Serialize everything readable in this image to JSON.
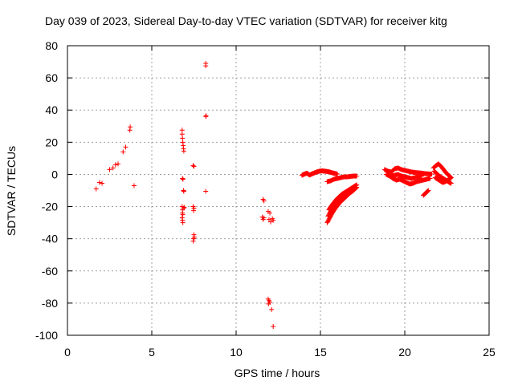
{
  "chart_data": {
    "type": "scatter",
    "title": "Day 039 of 2023, Sidereal Day-to-day VTEC variation (SDTVAR) for receiver kitg",
    "xlabel": "GPS time / hours",
    "ylabel": "SDTVAR / TECUs",
    "xlim": [
      0,
      25
    ],
    "ylim": [
      -100,
      80
    ],
    "xticks": [
      0,
      5,
      10,
      15,
      20,
      25
    ],
    "yticks": [
      -100,
      -80,
      -60,
      -40,
      -20,
      0,
      20,
      40,
      60,
      80
    ],
    "grid": true,
    "marker": "+",
    "color": "#ff0000",
    "series": [
      {
        "name": "kitg",
        "points": [
          [
            1.7,
            -9
          ],
          [
            1.9,
            -5
          ],
          [
            2.05,
            -5.5
          ],
          [
            2.5,
            3
          ],
          [
            2.7,
            4
          ],
          [
            2.85,
            6
          ],
          [
            3.0,
            6.5
          ],
          [
            3.3,
            14
          ],
          [
            3.45,
            17
          ],
          [
            3.7,
            27.5
          ],
          [
            3.72,
            29.5
          ],
          [
            3.95,
            -7
          ],
          [
            6.8,
            27.5
          ],
          [
            6.8,
            25
          ],
          [
            6.82,
            22.5
          ],
          [
            6.84,
            20
          ],
          [
            6.86,
            18
          ],
          [
            6.88,
            16
          ],
          [
            6.9,
            14.5
          ],
          [
            6.82,
            -2.5
          ],
          [
            6.85,
            -3
          ],
          [
            6.88,
            -10
          ],
          [
            6.9,
            -10.5
          ],
          [
            6.8,
            -20
          ],
          [
            6.82,
            -22
          ],
          [
            6.82,
            -24
          ],
          [
            6.84,
            -25
          ],
          [
            6.8,
            -27
          ],
          [
            6.82,
            -28.5
          ],
          [
            6.84,
            -30
          ],
          [
            6.9,
            -21
          ],
          [
            6.92,
            -20.5
          ],
          [
            7.45,
            5.5
          ],
          [
            7.5,
            5
          ],
          [
            7.45,
            -20
          ],
          [
            7.5,
            -21
          ],
          [
            7.48,
            -22.5
          ],
          [
            7.5,
            -37.5
          ],
          [
            7.48,
            -40
          ],
          [
            7.46,
            -41.5
          ],
          [
            7.52,
            -39
          ],
          [
            8.2,
            69
          ],
          [
            8.2,
            67.5
          ],
          [
            8.2,
            36
          ],
          [
            8.22,
            36.5
          ],
          [
            8.2,
            -10.5
          ],
          [
            11.6,
            -15.5
          ],
          [
            11.65,
            -16.5
          ],
          [
            11.55,
            -26.5
          ],
          [
            11.6,
            -28
          ],
          [
            11.65,
            -27
          ],
          [
            11.9,
            -23
          ],
          [
            12.0,
            -24
          ],
          [
            11.95,
            -28
          ],
          [
            12.05,
            -29.5
          ],
          [
            12.15,
            -27.5
          ],
          [
            12.2,
            -28.5
          ],
          [
            11.9,
            -77.5
          ],
          [
            11.95,
            -78.5
          ],
          [
            12.0,
            -79.5
          ],
          [
            11.92,
            -80.5
          ],
          [
            12.1,
            -84
          ],
          [
            12.2,
            -94.5
          ]
        ],
        "curves": [
          {
            "x": [
              13.9,
              14.05,
              14.2,
              14.35,
              14.5,
              14.65,
              14.8,
              14.95,
              15.1,
              15.25,
              15.4,
              15.55,
              15.7,
              15.85,
              16.0
            ],
            "y": [
              -0.5,
              0.2,
              0.8,
              -0.4,
              0.3,
              1.0,
              1.6,
              2.0,
              2.2,
              2.0,
              1.8,
              1.5,
              1.0,
              0.6,
              0.2
            ]
          },
          {
            "x": [
              15.4,
              15.6,
              15.8,
              16.0,
              16.2,
              16.4,
              16.6,
              16.8,
              17.0,
              17.15
            ],
            "y": [
              -4.5,
              -4,
              -3,
              -2.5,
              -2,
              -1.5,
              -1.5,
              -1.2,
              -1.0,
              -1.0
            ]
          },
          {
            "x": [
              15.4,
              15.55,
              15.7,
              15.85,
              16.0,
              16.15,
              16.3,
              16.45,
              16.6,
              16.75,
              16.9,
              17.05,
              17.15
            ],
            "y": [
              -30,
              -27,
              -24,
              -21.5,
              -19.5,
              -17.5,
              -16,
              -14.5,
              -13,
              -11.5,
              -10.5,
              -9,
              -8
            ]
          },
          {
            "x": [
              15.45,
              15.6,
              15.75,
              15.9,
              16.05,
              16.2,
              16.35,
              16.5,
              16.65,
              16.8,
              16.95,
              17.1
            ],
            "y": [
              -26,
              -23,
              -20.5,
              -18.5,
              -16.5,
              -15,
              -13.5,
              -12,
              -11,
              -10,
              -9,
              -8
            ]
          },
          {
            "x": [
              15.5,
              15.65,
              15.8,
              15.95,
              16.1,
              16.25,
              16.4,
              16.55,
              16.7,
              16.85,
              17.0,
              17.15
            ],
            "y": [
              -22,
              -19.5,
              -17.5,
              -15.5,
              -14,
              -12.5,
              -11.5,
              -10.5,
              -9.5,
              -8.5,
              -7.5,
              -6.5
            ]
          },
          {
            "x": [
              18.8,
              19.0,
              19.2,
              19.4,
              19.6,
              19.8,
              20.0,
              20.2,
              20.4,
              20.6,
              20.8,
              21.0,
              21.2,
              21.4,
              21.6
            ],
            "y": [
              3,
              2,
              1.5,
              3.5,
              4,
              3,
              2.5,
              2,
              1.5,
              1.2,
              1,
              0.8,
              0.5,
              0.3,
              0.2
            ]
          },
          {
            "x": [
              18.9,
              19.1,
              19.3,
              19.5,
              19.7,
              19.9,
              20.1,
              20.3,
              20.5,
              20.7,
              20.9,
              21.1,
              21.3,
              21.5
            ],
            "y": [
              0,
              -1,
              -2.5,
              -3.5,
              -3,
              -4,
              -5,
              -6,
              -5.5,
              -4.5,
              -4,
              -3.5,
              -3,
              -2.5
            ]
          },
          {
            "x": [
              19.2,
              19.4,
              19.6,
              19.8,
              20.0,
              20.2,
              20.4,
              20.6,
              20.8,
              21.0
            ],
            "y": [
              -1,
              -0.5,
              0,
              -1,
              -1.5,
              -2,
              -2.5,
              -2,
              -1.5,
              -1
            ]
          },
          {
            "x": [
              21.1,
              21.25,
              21.4
            ],
            "y": [
              -13,
              -11.5,
              -10
            ]
          },
          {
            "x": [
              21.7,
              21.85,
              22.0,
              22.15,
              22.3,
              22.45,
              22.6,
              22.75
            ],
            "y": [
              4,
              5.5,
              6.5,
              5,
              3,
              1,
              -0.5,
              -2
            ]
          },
          {
            "x": [
              21.75,
              21.9,
              22.05,
              22.2,
              22.35,
              22.5,
              22.65,
              22.75
            ],
            "y": [
              2,
              0.5,
              -1,
              -2,
              -3,
              -4,
              -5,
              -5.5
            ]
          },
          {
            "x": [
              21.8,
              21.95,
              22.1,
              22.25,
              22.4,
              22.55,
              22.7
            ],
            "y": [
              -2,
              -3,
              -4,
              -5,
              -4.5,
              -3.5,
              -2.5
            ]
          }
        ]
      }
    ]
  }
}
